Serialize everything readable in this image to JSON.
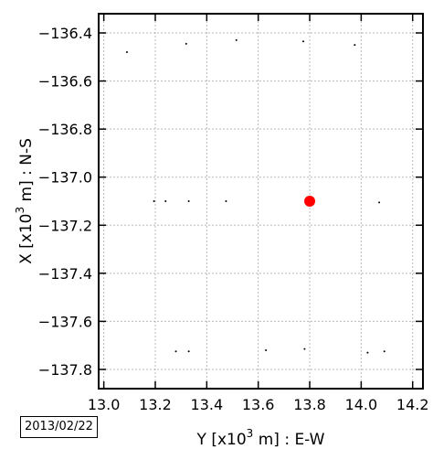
{
  "chart_data": {
    "type": "scatter",
    "xlabel": {
      "prefix": "Y [x10",
      "exp": "3",
      "suffix": " m] : E-W"
    },
    "ylabel": {
      "prefix": "X [x10",
      "exp": "3",
      "suffix": " m] : N-S"
    },
    "xlim": [
      12.98,
      14.24
    ],
    "ylim": [
      -137.88,
      -136.32
    ],
    "xticks": [
      13.0,
      13.2,
      13.4,
      13.6,
      13.8,
      14.0,
      14.2
    ],
    "xtick_labels": [
      "13.0",
      "13.2",
      "13.4",
      "13.6",
      "13.8",
      "14.0",
      "14.2"
    ],
    "yticks": [
      -136.4,
      -136.6,
      -136.8,
      -137.0,
      -137.2,
      -137.4,
      -137.6,
      -137.8
    ],
    "ytick_labels": [
      "−136.4",
      "−136.6",
      "−136.8",
      "−137.0",
      "−137.2",
      "−137.4",
      "−137.6",
      "−137.8"
    ],
    "grid": true,
    "series": [
      {
        "marker": "small-dot",
        "color": "#000000",
        "points": [
          [
            13.09,
            -136.48
          ],
          [
            13.32,
            -136.445
          ],
          [
            13.515,
            -136.43
          ],
          [
            13.775,
            -136.435
          ],
          [
            13.975,
            -136.45
          ],
          [
            13.195,
            -137.1
          ],
          [
            13.24,
            -137.1
          ],
          [
            13.33,
            -137.1
          ],
          [
            13.475,
            -137.1
          ],
          [
            14.07,
            -137.105
          ],
          [
            13.28,
            -137.725
          ],
          [
            13.33,
            -137.725
          ],
          [
            13.63,
            -137.72
          ],
          [
            13.78,
            -137.715
          ],
          [
            14.025,
            -137.73
          ],
          [
            14.09,
            -137.725
          ]
        ]
      },
      {
        "marker": "large-dot",
        "color": "#ff0000",
        "points": [
          [
            13.8,
            -137.1
          ]
        ]
      }
    ]
  },
  "date_label": "2013/02/22"
}
